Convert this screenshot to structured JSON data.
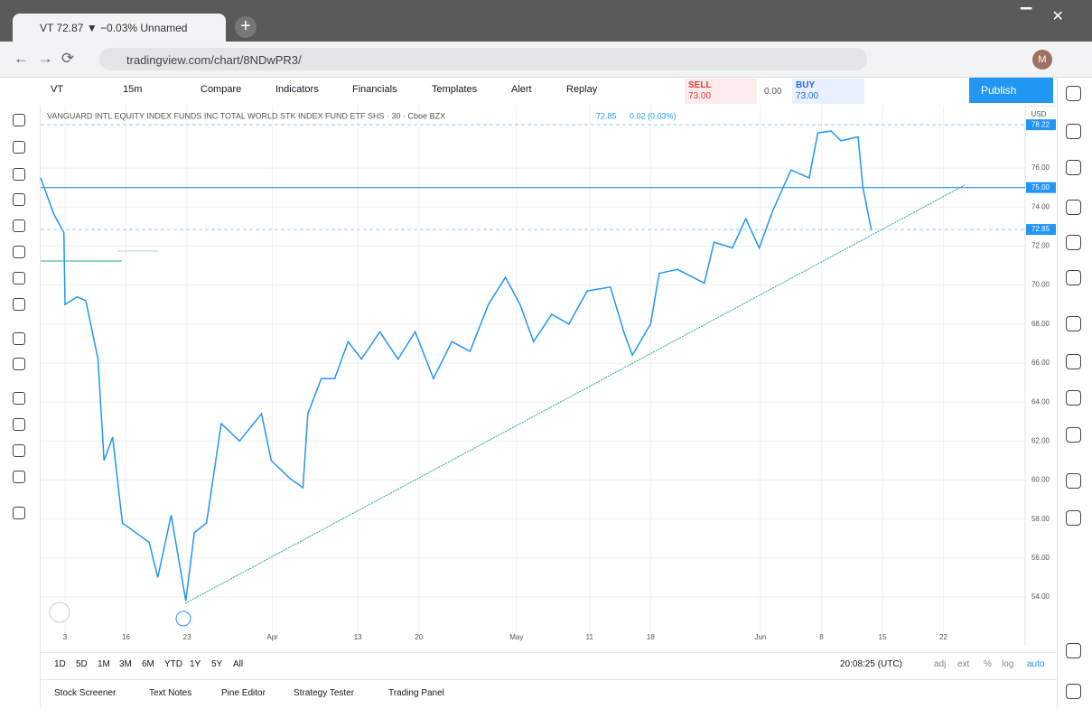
{
  "browser": {
    "tab_title": "VT 72.87 ▼ −0.03% Unnamed",
    "url": "tradingview.com/chart/8NDwPR3/"
  },
  "toolbar": {
    "symbol": "VT",
    "interval": "15m",
    "items": [
      "Compare",
      "Indicators",
      "Financials",
      "Templates",
      "Alert",
      "Replay"
    ],
    "sell_label": "SELL",
    "sell_price": "73.00",
    "spread": "0.00",
    "buy_label": "BUY",
    "buy_price": "73.00",
    "publish": "Publish"
  },
  "chart_data": {
    "type": "line",
    "title": "VANGUARD INTL EQUITY INDEX FUNDS INC TOTAL WORLD STK INDEX FUND ETF SHS · 30 · Cboe BZX",
    "last_price": "72.85",
    "change": "0.02 (0.03%)",
    "currency": "USD",
    "color": "#2196f3",
    "x": [
      0,
      1.1,
      1.9,
      2.0,
      3.0,
      3.7,
      4.7,
      5.2,
      5.9,
      6.7,
      7.8,
      8.9,
      9.6,
      10.7,
      11.9,
      12.6,
      13.6,
      14.8,
      16.3,
      18.1,
      18.9,
      20.4,
      21.5,
      21.9,
      23.0,
      24.1,
      25.2,
      26.3,
      27.8,
      29.3,
      30.7,
      32.2,
      33.7,
      35.2,
      36.7,
      38.1,
      39.3,
      40.4,
      41.9,
      43.3,
      44.8,
      46.7,
      47.8,
      48.5,
      50.0,
      50.7,
      52.2,
      54.4,
      55.2,
      56.7,
      57.8,
      58.9,
      60.0,
      61.5,
      63.0,
      63.7,
      64.8,
      65.6,
      67.0,
      67.4,
      68.1
    ],
    "values": [
      75.5,
      73.6,
      72.7,
      69.0,
      69.4,
      69.2,
      66.2,
      61.0,
      62.2,
      57.8,
      57.3,
      56.8,
      55.0,
      58.2,
      53.8,
      57.3,
      57.8,
      62.9,
      62.0,
      63.4,
      61.0,
      60.1,
      59.6,
      63.4,
      65.2,
      65.2,
      67.1,
      66.2,
      67.6,
      66.2,
      67.6,
      65.2,
      67.1,
      66.6,
      69.0,
      70.4,
      69.0,
      67.1,
      68.5,
      68.0,
      69.7,
      69.9,
      67.6,
      66.4,
      68.0,
      70.6,
      70.8,
      70.1,
      72.2,
      71.9,
      73.4,
      71.9,
      73.8,
      75.9,
      75.5,
      77.8,
      77.9,
      77.4,
      77.6,
      75.0,
      72.8
    ],
    "xlim": [
      0,
      80.7
    ],
    "ylim": [
      51.5,
      79.2
    ],
    "xticks": [
      {
        "value": 2,
        "label": "3"
      },
      {
        "value": 7,
        "label": "16"
      },
      {
        "value": 12,
        "label": "23"
      },
      {
        "value": 19,
        "label": "Apr"
      },
      {
        "value": 26,
        "label": "13"
      },
      {
        "value": 31,
        "label": "20"
      },
      {
        "value": 39,
        "label": "May"
      },
      {
        "value": 45,
        "label": "11"
      },
      {
        "value": 50,
        "label": "18"
      },
      {
        "value": 59,
        "label": "Jun"
      },
      {
        "value": 64,
        "label": "8"
      },
      {
        "value": 69,
        "label": "15"
      },
      {
        "value": 74,
        "label": "22"
      }
    ],
    "yticks": [
      {
        "value": 54,
        "label": "54.00"
      },
      {
        "value": 56,
        "label": "56.00"
      },
      {
        "value": 58,
        "label": "58.00"
      },
      {
        "value": 60,
        "label": "60.00"
      },
      {
        "value": 62,
        "label": "62.00"
      },
      {
        "value": 64,
        "label": "64.00"
      },
      {
        "value": 66,
        "label": "66.00"
      },
      {
        "value": 68,
        "label": "68.00"
      },
      {
        "value": 70,
        "label": "70.00"
      },
      {
        "value": 72,
        "label": "72.00"
      },
      {
        "value": 74,
        "label": "74.00"
      },
      {
        "value": 76,
        "label": "76.00"
      }
    ],
    "price_labels": [
      {
        "value": 78.22,
        "label": "78.22"
      },
      {
        "value": 75,
        "label": "75.00"
      },
      {
        "value": 72.85,
        "label": "72.85"
      }
    ],
    "grid": true
  },
  "range_bar": {
    "ranges": [
      "1D",
      "5D",
      "1M",
      "3M",
      "6M",
      "YTD",
      "1Y",
      "5Y",
      "All"
    ],
    "clock": "20:08:25 (UTC)",
    "options": [
      "adj",
      "ext",
      "%",
      "log",
      "auto"
    ]
  },
  "bottom_tabs": [
    "Stock Screener",
    "Text Notes",
    "Pine Editor",
    "Strategy Tester",
    "Trading Panel"
  ]
}
